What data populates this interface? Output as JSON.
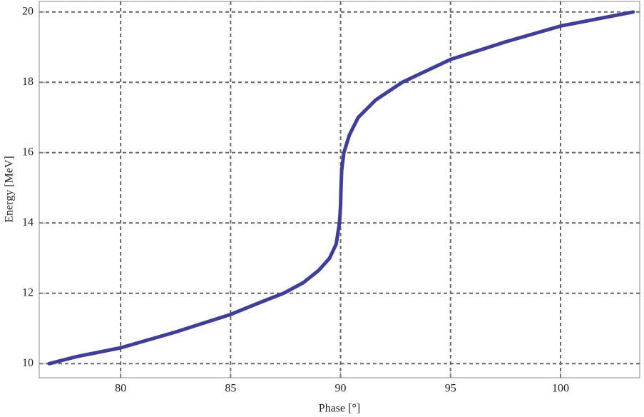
{
  "chart_data": {
    "type": "line",
    "x_label": "Phase [°]",
    "y_label": "Energy [MeV]",
    "x": [
      76.75,
      78,
      80,
      82.5,
      85,
      86.5,
      87.4,
      88.3,
      89,
      89.5,
      89.8,
      89.95,
      90.0,
      90.02,
      90.05,
      90.15,
      90.4,
      90.8,
      91.6,
      92.8,
      95,
      97.5,
      100,
      103.3
    ],
    "values": [
      10.0,
      10.2,
      10.45,
      10.9,
      11.4,
      11.78,
      12.0,
      12.3,
      12.65,
      13.0,
      13.4,
      14.0,
      14.5,
      15.0,
      15.5,
      16.0,
      16.5,
      17.0,
      17.5,
      18.0,
      18.65,
      19.15,
      19.6,
      20.0
    ],
    "color": "#3f3f98",
    "xlim": [
      76.3,
      103.6
    ],
    "ylim": [
      9.6,
      20.3
    ],
    "xticks": [
      80,
      85,
      90,
      95,
      100
    ],
    "yticks": [
      10,
      12,
      14,
      16,
      18,
      20
    ],
    "grid": true
  }
}
